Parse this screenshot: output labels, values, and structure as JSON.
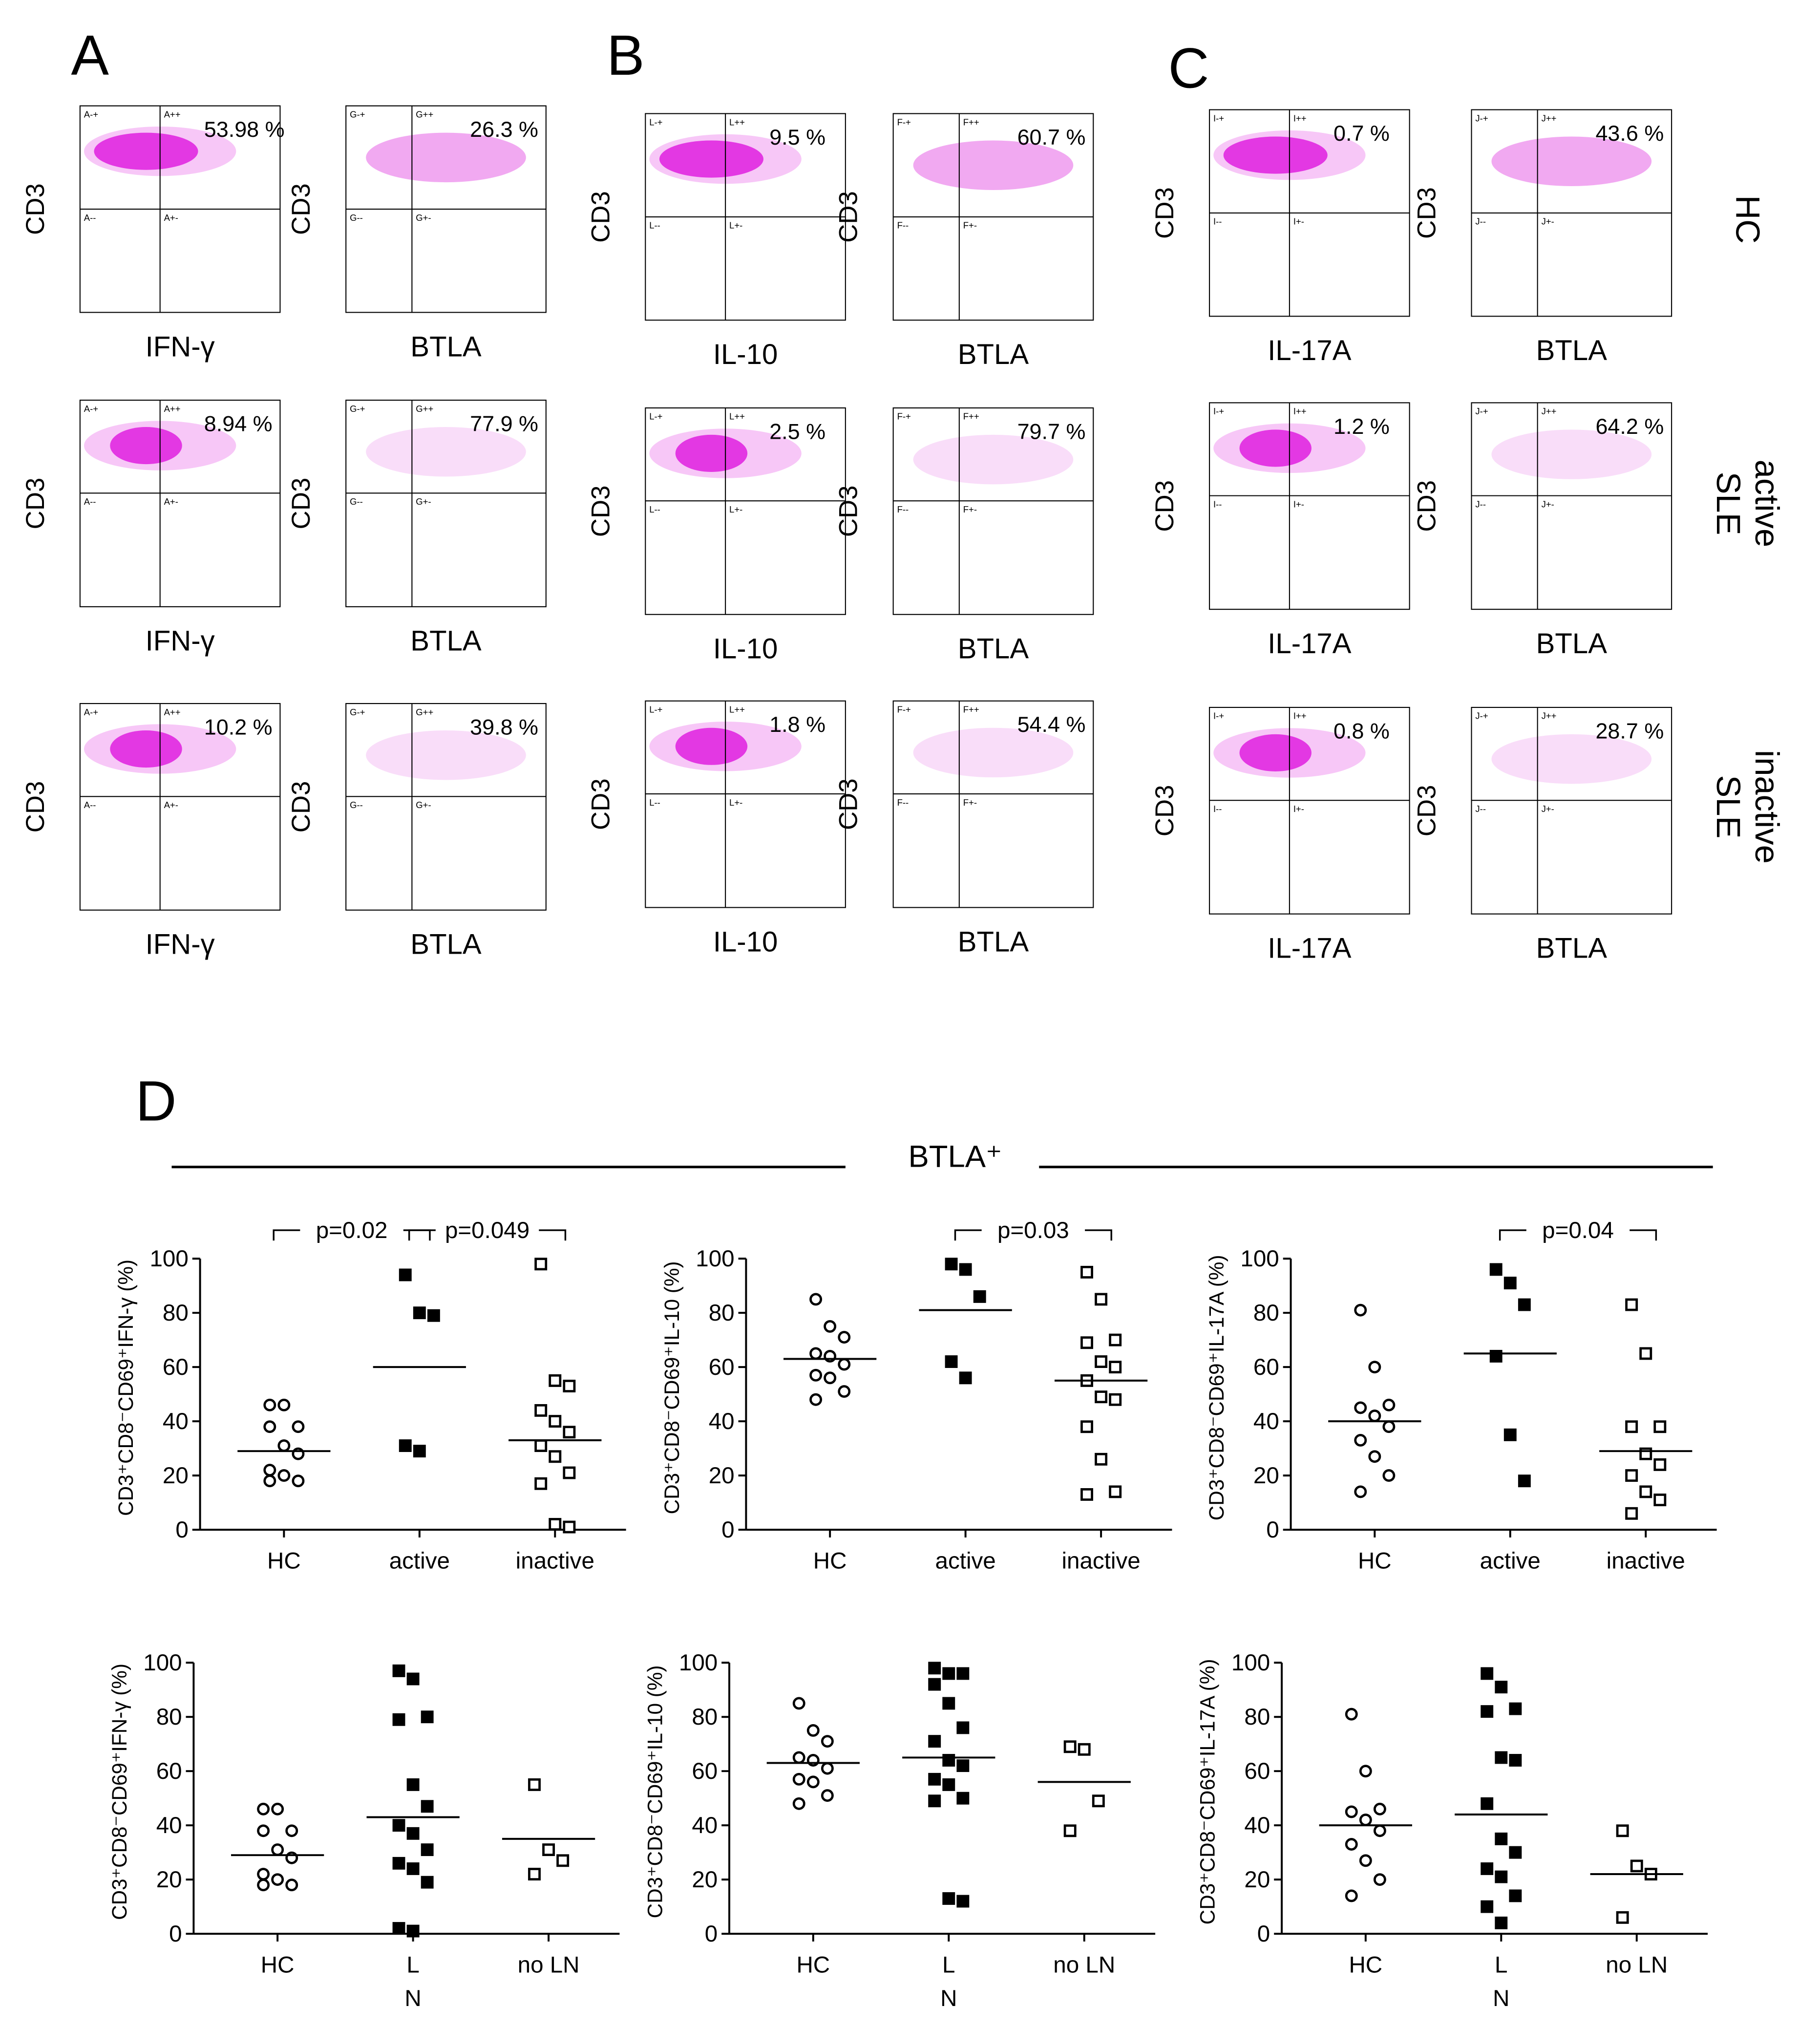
{
  "flow": {
    "columns": [
      {
        "letter": "A",
        "rows": [
          [
            {
              "y_label": "CD3",
              "x_label": "IFN-γ",
              "percent": "53.98 %",
              "quadrants": [
                "A-+",
                "A++",
                "A--",
                "A+-"
              ]
            },
            {
              "y_label": "CD3",
              "x_label": "BTLA",
              "percent": "26.3 %",
              "quadrants": [
                "G-+",
                "G++",
                "G--",
                "G+-"
              ]
            }
          ],
          [
            {
              "y_label": "CD3",
              "x_label": "IFN-γ",
              "percent": "8.94 %",
              "quadrants": [
                "A-+",
                "A++",
                "A--",
                "A+-"
              ]
            },
            {
              "y_label": "CD3",
              "x_label": "BTLA",
              "percent": "77.9 %",
              "quadrants": [
                "G-+",
                "G++",
                "G--",
                "G+-"
              ]
            }
          ],
          [
            {
              "y_label": "CD3",
              "x_label": "IFN-γ",
              "percent": "10.2 %",
              "quadrants": [
                "A-+",
                "A++",
                "A--",
                "A+-"
              ]
            },
            {
              "y_label": "CD3",
              "x_label": "BTLA",
              "percent": "39.8 %",
              "quadrants": [
                "G-+",
                "G++",
                "G--",
                "G+-"
              ]
            }
          ]
        ]
      },
      {
        "letter": "B",
        "rows": [
          [
            {
              "y_label": "CD3",
              "x_label": "IL-10",
              "percent": "9.5 %",
              "quadrants": [
                "L-+",
                "L++",
                "L--",
                "L+-"
              ]
            },
            {
              "y_label": "CD3",
              "x_label": "BTLA",
              "percent": "60.7 %",
              "quadrants": [
                "F-+",
                "F++",
                "F--",
                "F+-"
              ]
            }
          ],
          [
            {
              "y_label": "CD3",
              "x_label": "IL-10",
              "percent": "2.5 %",
              "quadrants": [
                "L-+",
                "L++",
                "L--",
                "L+-"
              ]
            },
            {
              "y_label": "CD3",
              "x_label": "BTLA",
              "percent": "79.7 %",
              "quadrants": [
                "F-+",
                "F++",
                "F--",
                "F+-"
              ]
            }
          ],
          [
            {
              "y_label": "CD3",
              "x_label": "IL-10",
              "percent": "1.8 %",
              "quadrants": [
                "L-+",
                "L++",
                "L--",
                "L+-"
              ]
            },
            {
              "y_label": "CD3",
              "x_label": "BTLA",
              "percent": "54.4 %",
              "quadrants": [
                "F-+",
                "F++",
                "F--",
                "F+-"
              ]
            }
          ]
        ]
      },
      {
        "letter": "C",
        "rows": [
          [
            {
              "y_label": "CD3",
              "x_label": "IL-17A",
              "percent": "0.7 %",
              "quadrants": [
                "I-+",
                "I++",
                "I--",
                "I+-"
              ]
            },
            {
              "y_label": "CD3",
              "x_label": "BTLA",
              "percent": "43.6 %",
              "quadrants": [
                "J-+",
                "J++",
                "J--",
                "J+-"
              ]
            }
          ],
          [
            {
              "y_label": "CD3",
              "x_label": "IL-17A",
              "percent": "1.2 %",
              "quadrants": [
                "I-+",
                "I++",
                "I--",
                "I+-"
              ]
            },
            {
              "y_label": "CD3",
              "x_label": "BTLA",
              "percent": "64.2 %",
              "quadrants": [
                "J-+",
                "J++",
                "J--",
                "J+-"
              ]
            }
          ],
          [
            {
              "y_label": "CD3",
              "x_label": "IL-17A",
              "percent": "0.8 %",
              "quadrants": [
                "I-+",
                "I++",
                "I--",
                "I+-"
              ]
            },
            {
              "y_label": "CD3",
              "x_label": "BTLA",
              "percent": "28.7 %",
              "quadrants": [
                "J-+",
                "J++",
                "J--",
                "J+-"
              ]
            }
          ]
        ]
      }
    ],
    "row_labels": [
      [
        "HC"
      ],
      [
        "active",
        "SLE"
      ],
      [
        "inactive",
        "SLE"
      ]
    ]
  },
  "panel_d": {
    "letter": "D",
    "header": "BTLA⁺"
  },
  "chart_data": [
    {
      "type": "dot",
      "ylabel": "CD3⁺CD8⁻CD69⁺IFN-γ (%)",
      "categories": [
        "HC",
        "active",
        "inactive"
      ],
      "markers": [
        "open-circle",
        "filled-square",
        "open-square"
      ],
      "values": [
        [
          46,
          46,
          38,
          38,
          31,
          28,
          22,
          20,
          18,
          18
        ],
        [
          94,
          80,
          79,
          31,
          29
        ],
        [
          98,
          55,
          53,
          44,
          40,
          36,
          31,
          27,
          21,
          17,
          2,
          1
        ]
      ],
      "medians": [
        29,
        60,
        33
      ],
      "ylim": [
        0,
        100
      ],
      "yticks": [
        0,
        20,
        40,
        60,
        80,
        100
      ],
      "annotations": [
        {
          "text": "p=0.02",
          "between": [
            0,
            1
          ]
        },
        {
          "text": "p=0.049",
          "between": [
            1,
            2
          ]
        }
      ]
    },
    {
      "type": "dot",
      "ylabel": "CD3⁺CD8⁻CD69⁺IL-10 (%)",
      "categories": [
        "HC",
        "active",
        "inactive"
      ],
      "markers": [
        "open-circle",
        "filled-square",
        "open-square"
      ],
      "values": [
        [
          85,
          75,
          71,
          65,
          64,
          61,
          57,
          56,
          51,
          48
        ],
        [
          98,
          96,
          86,
          62,
          56
        ],
        [
          95,
          85,
          70,
          69,
          62,
          60,
          55,
          49,
          48,
          38,
          26,
          14,
          13
        ]
      ],
      "medians": [
        63,
        81,
        55
      ],
      "ylim": [
        0,
        100
      ],
      "yticks": [
        0,
        20,
        40,
        60,
        80,
        100
      ],
      "annotations": [
        {
          "text": "p=0.03",
          "between": [
            1,
            2
          ]
        }
      ]
    },
    {
      "type": "dot",
      "ylabel": "CD3⁺CD8⁻CD69⁺IL-17A (%)",
      "categories": [
        "HC",
        "active",
        "inactive"
      ],
      "markers": [
        "open-circle",
        "filled-square",
        "open-square"
      ],
      "values": [
        [
          81,
          60,
          46,
          45,
          42,
          38,
          33,
          27,
          20,
          14
        ],
        [
          96,
          91,
          83,
          64,
          35,
          18
        ],
        [
          83,
          65,
          38,
          38,
          28,
          24,
          20,
          14,
          11,
          6
        ]
      ],
      "medians": [
        40,
        65,
        29
      ],
      "ylim": [
        0,
        100
      ],
      "yticks": [
        0,
        20,
        40,
        60,
        80,
        100
      ],
      "annotations": [
        {
          "text": "p=0.04",
          "between": [
            1,
            2
          ]
        }
      ]
    },
    {
      "type": "dot",
      "ylabel": "CD3⁺CD8⁻CD69⁺IFN-γ (%)",
      "categories": [
        "HC",
        [
          "L",
          "N"
        ],
        "no LN"
      ],
      "markers": [
        "open-circle",
        "filled-square",
        "open-square"
      ],
      "values": [
        [
          46,
          46,
          38,
          38,
          31,
          28,
          22,
          20,
          18,
          18
        ],
        [
          97,
          94,
          80,
          79,
          55,
          47,
          40,
          37,
          31,
          26,
          24,
          19,
          2,
          1
        ],
        [
          55,
          31,
          27,
          22
        ]
      ],
      "medians": [
        29,
        43,
        35
      ],
      "ylim": [
        0,
        100
      ],
      "yticks": [
        0,
        20,
        40,
        60,
        80,
        100
      ],
      "annotations": []
    },
    {
      "type": "dot",
      "ylabel": "CD3⁺CD8⁻CD69⁺IL-10 (%)",
      "categories": [
        "HC",
        [
          "L",
          "N"
        ],
        "no LN"
      ],
      "markers": [
        "open-circle",
        "filled-square",
        "open-square"
      ],
      "values": [
        [
          85,
          75,
          71,
          65,
          64,
          61,
          57,
          56,
          51,
          48
        ],
        [
          98,
          96,
          96,
          92,
          85,
          76,
          71,
          64,
          62,
          57,
          55,
          50,
          49,
          13,
          12
        ],
        [
          69,
          68,
          49,
          38
        ]
      ],
      "medians": [
        63,
        65,
        56
      ],
      "ylim": [
        0,
        100
      ],
      "yticks": [
        0,
        20,
        40,
        60,
        80,
        100
      ],
      "annotations": []
    },
    {
      "type": "dot",
      "ylabel": "CD3⁺CD8⁻CD69⁺IL-17A (%)",
      "categories": [
        "HC",
        [
          "L",
          "N"
        ],
        "no LN"
      ],
      "markers": [
        "open-circle",
        "filled-square",
        "open-square"
      ],
      "values": [
        [
          81,
          60,
          46,
          45,
          42,
          38,
          33,
          27,
          20,
          14
        ],
        [
          96,
          91,
          83,
          82,
          65,
          64,
          48,
          35,
          30,
          24,
          21,
          14,
          10,
          4
        ],
        [
          38,
          25,
          22,
          6
        ]
      ],
      "medians": [
        40,
        44,
        22
      ],
      "ylim": [
        0,
        100
      ],
      "yticks": [
        0,
        20,
        40,
        60,
        80,
        100
      ],
      "annotations": []
    }
  ]
}
